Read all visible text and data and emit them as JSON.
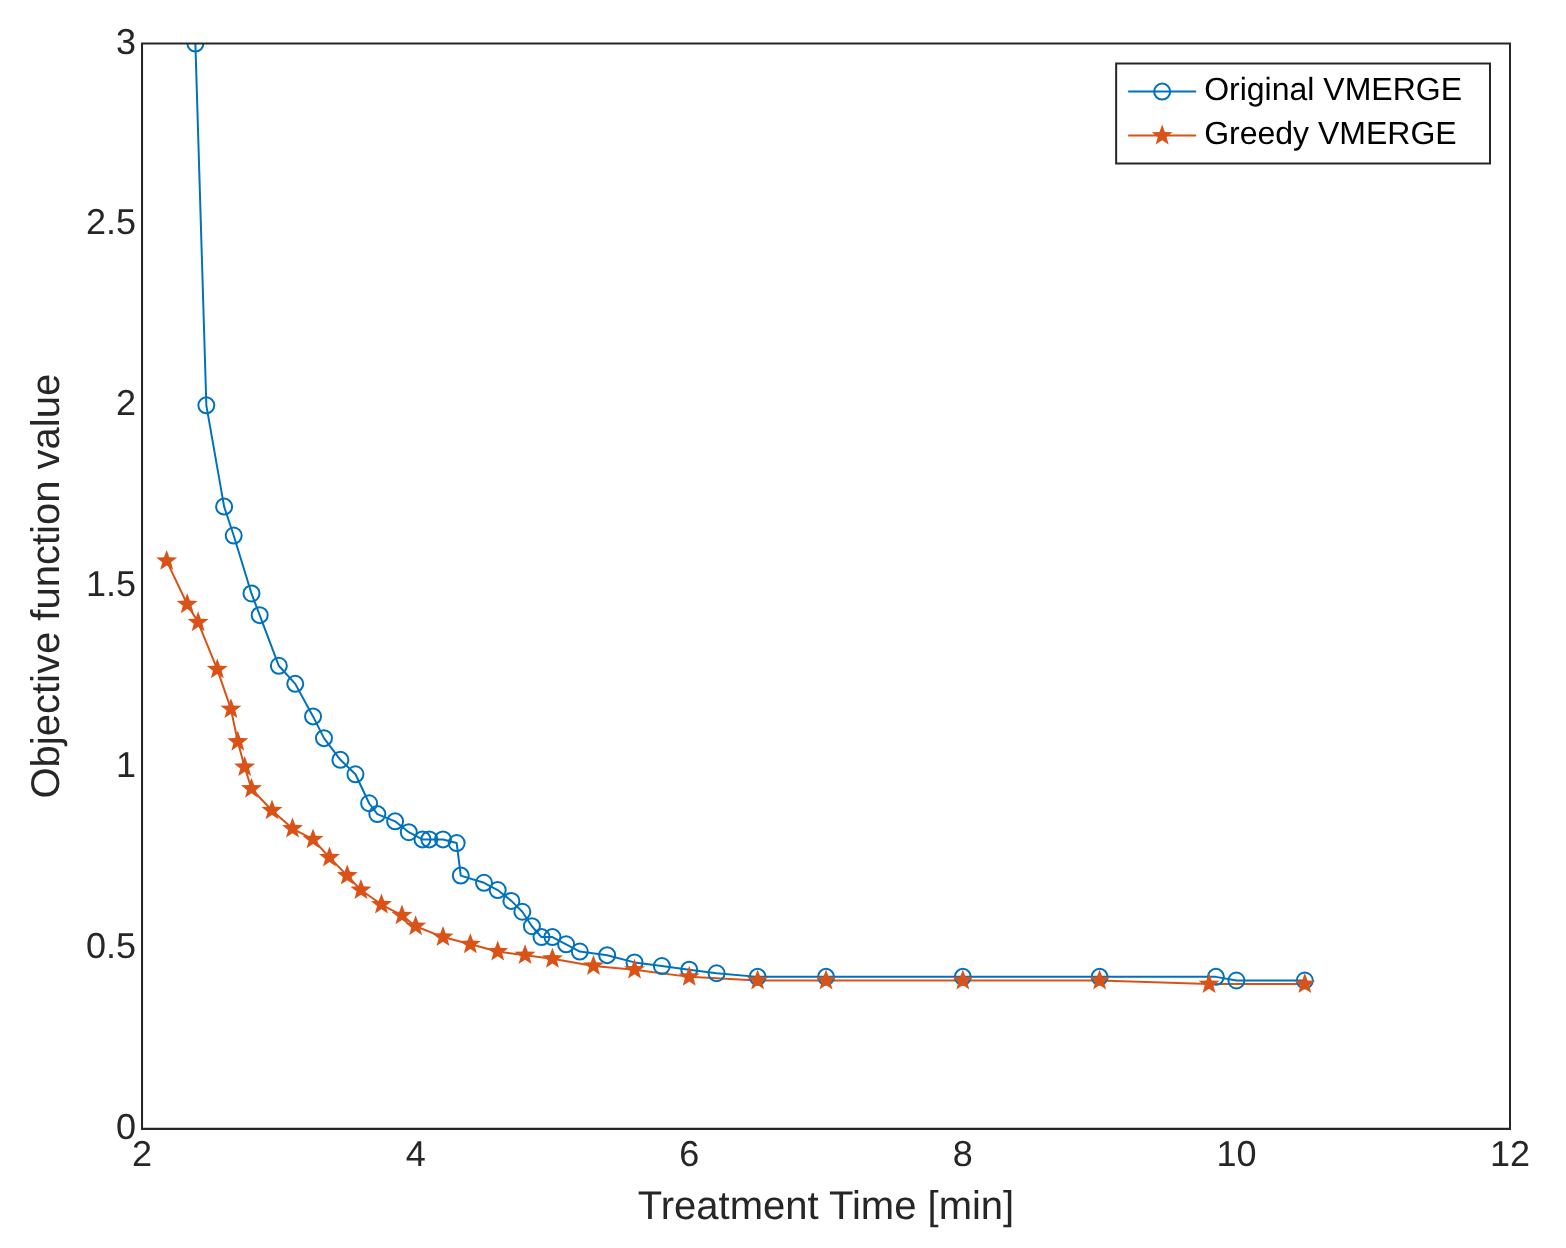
{
  "chart_data": {
    "type": "line",
    "xlabel": "Treatment Time [min]",
    "ylabel": "Objective function value",
    "xlim": [
      2,
      12
    ],
    "xticks": [
      2,
      4,
      6,
      8,
      10,
      12
    ],
    "ylim": [
      0,
      3
    ],
    "yticks": [
      0,
      0.5,
      1,
      1.5,
      2,
      2.5,
      3
    ],
    "grid": false,
    "legend": "top right",
    "line_style": "solid",
    "series": [
      {
        "name": "Original VMERGE",
        "color": "#0072bd",
        "marker": "circle",
        "x": [
          2.39,
          2.47,
          2.6,
          2.67,
          2.8,
          2.86,
          3.0,
          3.12,
          3.25,
          3.33,
          3.45,
          3.56,
          3.66,
          3.72,
          3.85,
          3.95,
          4.05,
          4.1,
          4.2,
          4.3,
          4.33,
          4.5,
          4.6,
          4.7,
          4.78,
          4.85,
          4.92,
          5.0,
          5.1,
          5.2,
          5.4,
          5.6,
          5.8,
          6.0,
          6.2,
          6.5,
          7,
          8,
          9,
          9.85,
          10,
          10.5
        ],
        "values": [
          3.0,
          2.0,
          1.72,
          1.64,
          1.48,
          1.42,
          1.28,
          1.23,
          1.14,
          1.08,
          1.02,
          0.98,
          0.9,
          0.87,
          0.85,
          0.82,
          0.8,
          0.8,
          0.8,
          0.79,
          0.7,
          0.68,
          0.66,
          0.63,
          0.6,
          0.56,
          0.53,
          0.53,
          0.51,
          0.49,
          0.48,
          0.46,
          0.45,
          0.44,
          0.43,
          0.42,
          0.42,
          0.42,
          0.42,
          0.42,
          0.41,
          0.41
        ]
      },
      {
        "name": "Greedy VMERGE",
        "color": "#d95319",
        "marker": "star",
        "x": [
          2.18,
          2.33,
          2.41,
          2.55,
          2.65,
          2.7,
          2.75,
          2.8,
          2.95,
          3.1,
          3.25,
          3.37,
          3.5,
          3.6,
          3.75,
          3.9,
          4.0,
          4.2,
          4.4,
          4.6,
          4.8,
          5.0,
          5.3,
          5.6,
          6.0,
          6.5,
          7,
          8,
          9,
          9.8,
          10.5
        ],
        "values": [
          1.57,
          1.45,
          1.4,
          1.27,
          1.16,
          1.07,
          1.0,
          0.94,
          0.88,
          0.83,
          0.8,
          0.75,
          0.7,
          0.66,
          0.62,
          0.59,
          0.56,
          0.53,
          0.51,
          0.49,
          0.48,
          0.47,
          0.45,
          0.44,
          0.42,
          0.41,
          0.41,
          0.41,
          0.41,
          0.4,
          0.4
        ]
      }
    ]
  }
}
